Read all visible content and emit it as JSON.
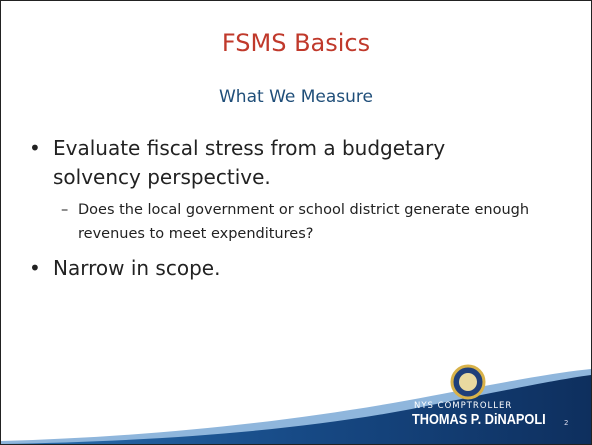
{
  "header": {
    "title": "FSMS Basics",
    "subtitle": "What We Measure"
  },
  "content": {
    "items": [
      {
        "level": 1,
        "text": "Evaluate fiscal stress from a budgetary solvency perspective."
      },
      {
        "level": 2,
        "text": "Does the local government or school district generate enough revenues to meet expenditures?"
      },
      {
        "level": 1,
        "text": "Narrow in scope."
      }
    ]
  },
  "footer": {
    "org_line": "NYS COMPTROLLER",
    "name": "THOMAS P. DiNAPOLI",
    "page": "2"
  }
}
